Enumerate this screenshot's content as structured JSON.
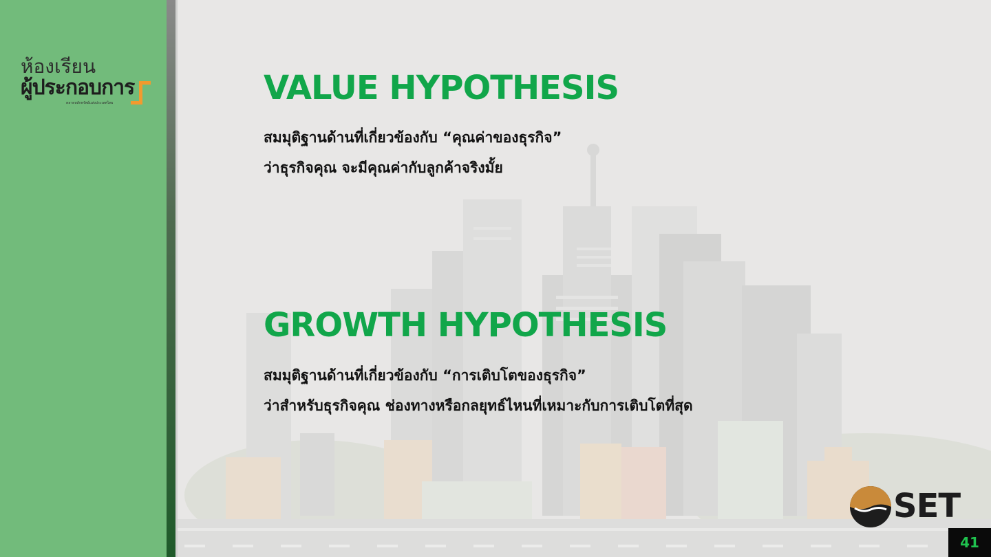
{
  "logo": {
    "line1": "ห้องเรียน",
    "line2": "ผู้ประกอบการ",
    "tagline": "ตลาดหลักทรัพย์แห่งประเทศไทย",
    "accent_color": "#f29a2e"
  },
  "sections": [
    {
      "heading": "VALUE HYPOTHESIS",
      "line1": "สมมุติฐานด้านที่เกี่ยวข้องกับ “คุณค่าของธุรกิจ”",
      "line2": "ว่าธุรกิจคุณ จะมีคุณค่ากับลูกค้าจริงมั้ย"
    },
    {
      "heading": "GROWTH HYPOTHESIS",
      "line1": "สมมุติฐานด้านที่เกี่ยวข้องกับ “การเติบโตของธุรกิจ”",
      "line2": "ว่าสำหรับธุรกิจคุณ ช่องทางหรือกลยุทธ์ไหนที่เหมาะกับการเติบโตที่สุด"
    }
  ],
  "brand": {
    "name": "SET",
    "accent_color": "#c98a3a"
  },
  "page_number": "41",
  "colors": {
    "heading": "#11a64a",
    "sidebar": "#72bb7b",
    "page_number": "#1fc24e"
  }
}
